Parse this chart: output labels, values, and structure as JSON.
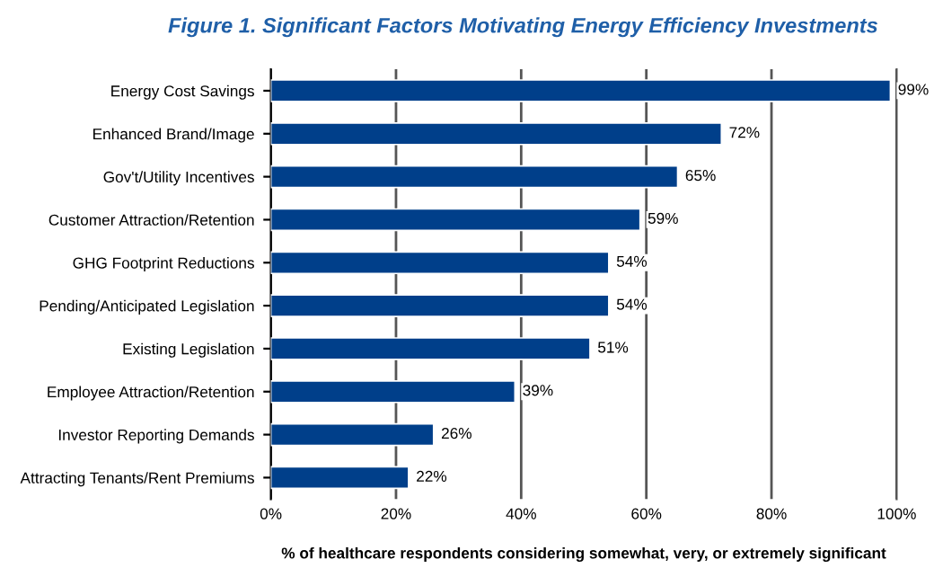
{
  "chart_data": {
    "type": "bar",
    "orientation": "horizontal",
    "title": "Figure 1. Significant Factors Motivating Energy Efficiency Investments",
    "xlabel": "% of healthcare respondents considering somewhat, very, or extremely significant",
    "categories": [
      "Energy Cost Savings",
      "Enhanced Brand/Image",
      "Gov't/Utility Incentives",
      "Customer Attraction/Retention",
      "GHG Footprint Reductions",
      "Pending/Anticipated Legislation",
      "Existing Legislation",
      "Employee Attraction/Retention",
      "Investor Reporting Demands",
      "Attracting Tenants/Rent Premiums"
    ],
    "values": [
      99,
      72,
      65,
      59,
      54,
      54,
      51,
      39,
      26,
      22
    ],
    "value_labels": [
      "99%",
      "72%",
      "65%",
      "59%",
      "54%",
      "54%",
      "51%",
      "39%",
      "26%",
      "22%"
    ],
    "color": "#003f8a",
    "xlim": [
      0,
      100
    ],
    "xticks": [
      {
        "value": 0,
        "label": "0%"
      },
      {
        "value": 20,
        "label": "20%"
      },
      {
        "value": 40,
        "label": "40%"
      },
      {
        "value": 60,
        "label": "60%"
      },
      {
        "value": 80,
        "label": "80%"
      },
      {
        "value": 100,
        "label": "100%"
      }
    ],
    "grid": "x",
    "legend": false
  }
}
